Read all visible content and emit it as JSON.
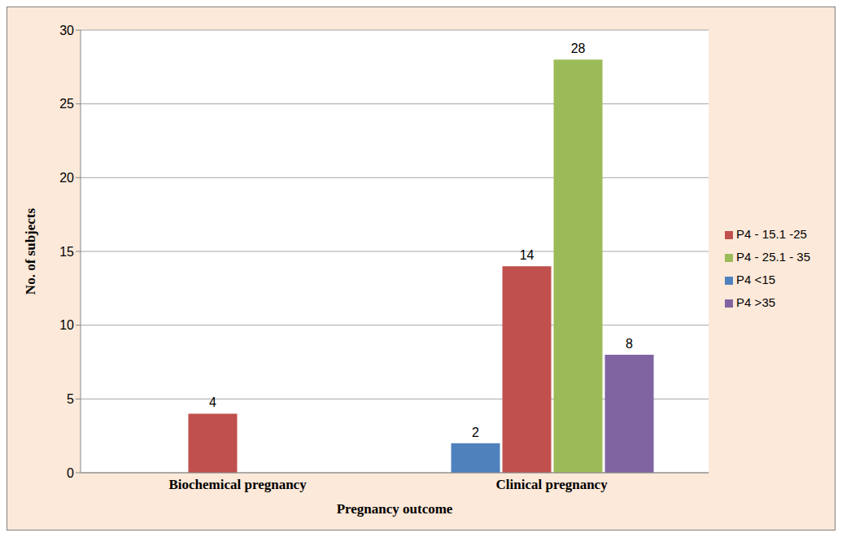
{
  "chart_data": {
    "type": "bar",
    "categories": [
      "Biochemical pregnancy",
      "Clinical pregnancy"
    ],
    "series": [
      {
        "name": "P4 <15",
        "color": "#4f81bd",
        "values": [
          0,
          2
        ]
      },
      {
        "name": "P4 - 15.1 -25",
        "color": "#c0504d",
        "values": [
          4,
          14
        ]
      },
      {
        "name": "P4 - 25.1 - 35",
        "color": "#9bbb59",
        "values": [
          0,
          28
        ]
      },
      {
        "name": "P4 >35",
        "color": "#8064a2",
        "values": [
          0,
          8
        ]
      }
    ],
    "x_label": "Pregnancy outcome",
    "y_label": "No. of subjects",
    "ylim": [
      0,
      30
    ],
    "yticks": [
      0,
      5,
      10,
      15,
      20,
      25,
      30
    ],
    "grid": true,
    "legend": "right",
    "data_labels": true
  }
}
